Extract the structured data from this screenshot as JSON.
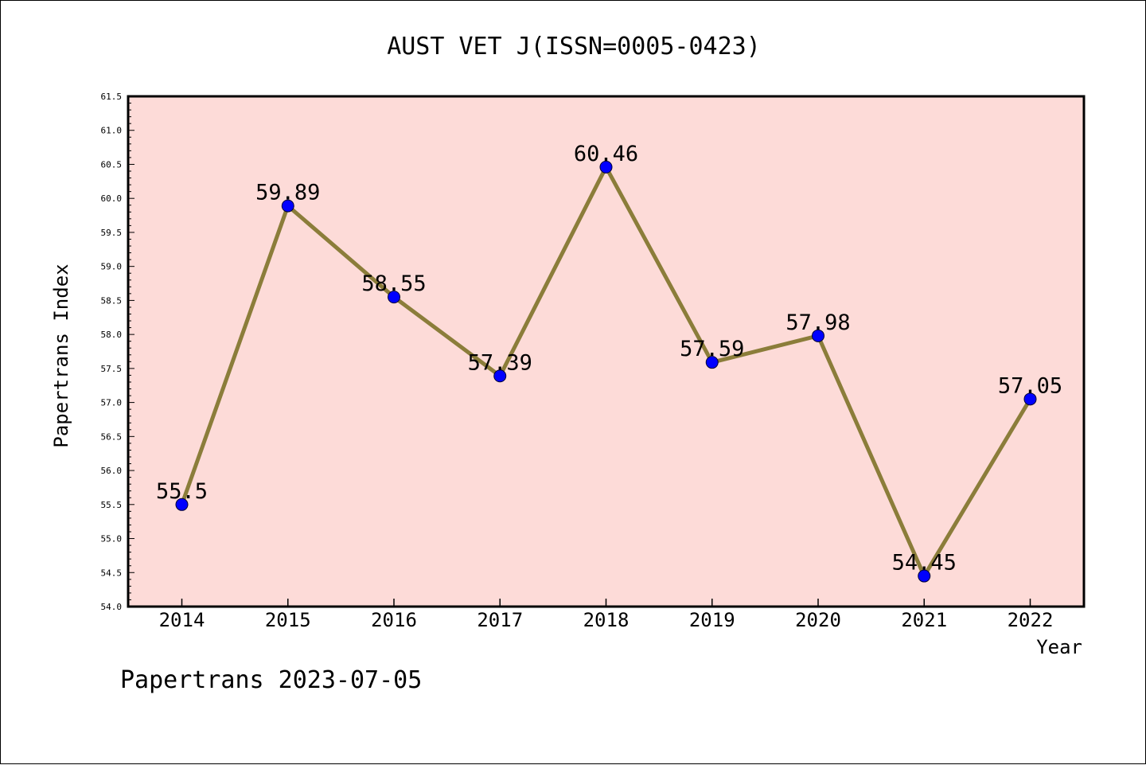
{
  "chart_data": {
    "type": "line",
    "title": "AUST VET J(ISSN=0005-0423)",
    "xlabel": "Year",
    "ylabel": "Papertrans Index",
    "footer": "Papertrans 2023-07-05",
    "x": [
      "2014",
      "2015",
      "2016",
      "2017",
      "2018",
      "2019",
      "2020",
      "2021",
      "2022"
    ],
    "values": [
      55.5,
      59.89,
      58.55,
      57.39,
      60.46,
      57.59,
      57.98,
      54.45,
      57.05
    ],
    "value_labels": [
      "55.5",
      "59.89",
      "58.55",
      "57.39",
      "60.46",
      "57.59",
      "57.98",
      "54.45",
      "57.05"
    ],
    "ylim": [
      54.0,
      61.5
    ],
    "y_ticks": [
      "54.0",
      "54.5",
      "55.0",
      "55.5",
      "56.0",
      "56.5",
      "57.0",
      "57.5",
      "58.0",
      "58.5",
      "59.0",
      "59.5",
      "60.0",
      "60.5",
      "61.0",
      "61.5"
    ],
    "grid": false,
    "legend": "none",
    "colors": {
      "plot_background": "#fddbd8",
      "line": "#8b7d3a",
      "marker": "#0000ff",
      "marker_edge": "#000033"
    }
  }
}
